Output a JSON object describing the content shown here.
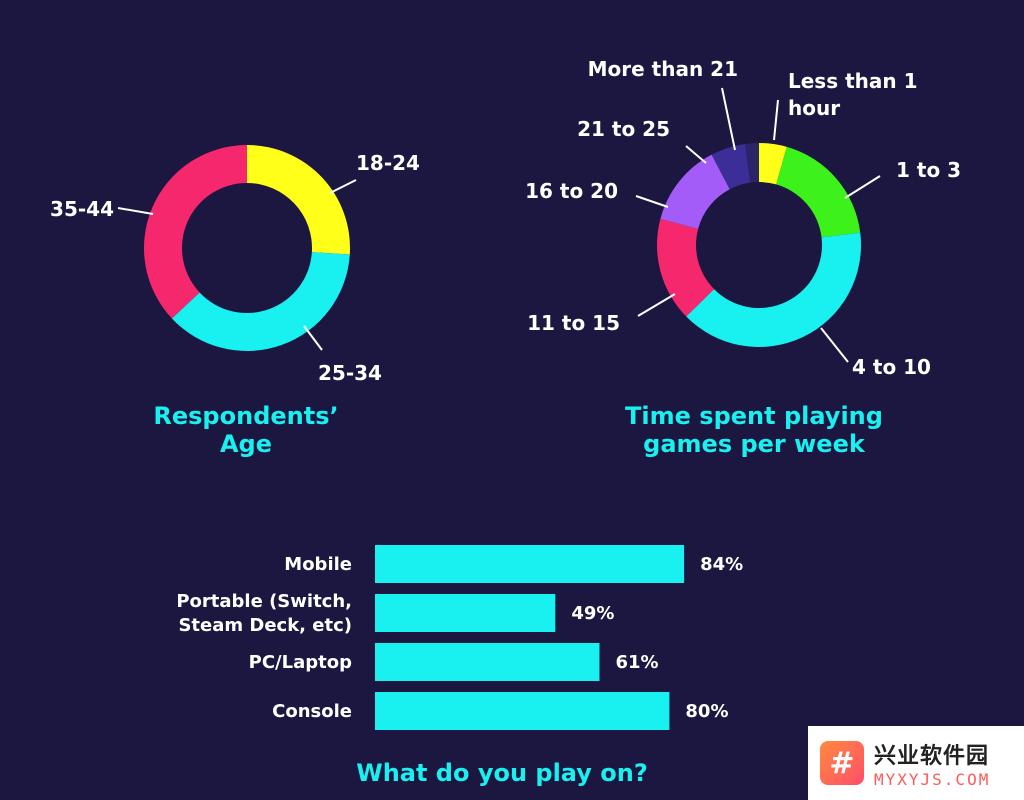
{
  "chart_data": [
    {
      "type": "pie",
      "donut": true,
      "title": "Respondents' Age",
      "title_lines": [
        "Respondents’",
        "Age"
      ],
      "slices": [
        {
          "label": "18-24",
          "value": 26,
          "color": "#ffff1a"
        },
        {
          "label": "25-34",
          "value": 37,
          "color": "#19f0f0"
        },
        {
          "label": "35-44",
          "value": 37,
          "color": "#f5286e"
        }
      ]
    },
    {
      "type": "pie",
      "donut": true,
      "title": "Time spent playing games per week",
      "title_lines": [
        "Time spent playing",
        "games per week"
      ],
      "slices": [
        {
          "label": "Less than 1 hour",
          "label_lines": [
            "Less than 1",
            "hour"
          ],
          "value": 4,
          "color": "#ffff1a"
        },
        {
          "label": "1 to 3",
          "value": 17,
          "color": "#3df21a"
        },
        {
          "label": "4 to 10",
          "value": 36,
          "color": "#19f0f0"
        },
        {
          "label": "11 to 15",
          "value": 15,
          "color": "#f5286e"
        },
        {
          "label": "16 to 20",
          "value": 12,
          "color": "#a35cf7"
        },
        {
          "label": "21 to 25",
          "value": 5,
          "color": "#3b2e96"
        },
        {
          "label": "More than 21",
          "value": 2,
          "color": "#2a2468"
        }
      ]
    },
    {
      "type": "bar",
      "orientation": "horizontal",
      "title": "What do you play on?",
      "categories": [
        "Mobile",
        "Portable (Switch, Steam Deck, etc)",
        "PC/Laptop",
        "Console"
      ],
      "category_lines": [
        [
          "Mobile"
        ],
        [
          "Portable (Switch,",
          "Steam Deck, etc)"
        ],
        [
          "PC/Laptop"
        ],
        [
          "Console"
        ]
      ],
      "values": [
        84,
        49,
        61,
        80
      ],
      "value_labels": [
        "84%",
        "49%",
        "61%",
        "80%"
      ],
      "unit": "%",
      "color": "#19f0f0"
    }
  ],
  "watermark": {
    "logo_glyph": "#",
    "cn": "兴业软件园",
    "en": "MYXYJS.COM"
  }
}
